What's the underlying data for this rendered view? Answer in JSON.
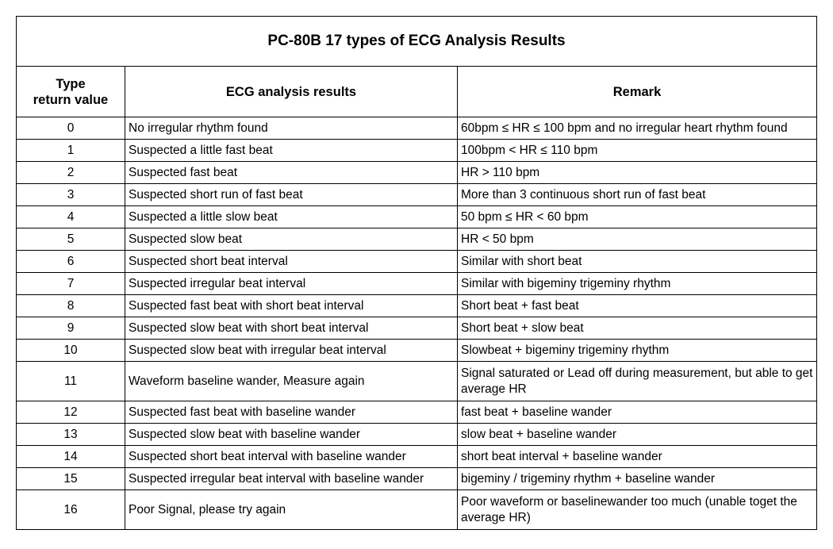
{
  "table": {
    "title": "PC-80B 17 types of ECG Analysis Results",
    "headers": {
      "type_line1": "Type",
      "type_line2": "return value",
      "result": "ECG analysis results",
      "remark": "Remark"
    },
    "rows": [
      {
        "type": "0",
        "result": "No irregular rhythm found",
        "remark": "60bpm ≤ HR ≤ 100 bpm and no irregular heart rhythm found"
      },
      {
        "type": "1",
        "result": "Suspected a little fast beat",
        "remark": "100bpm < HR ≤ 110 bpm"
      },
      {
        "type": "2",
        "result": "Suspected fast beat",
        "remark": "HR > 110 bpm"
      },
      {
        "type": "3",
        "result": "Suspected short run of fast beat",
        "remark": "More than 3 continuous short run of fast beat"
      },
      {
        "type": "4",
        "result": "Suspected a little slow beat",
        "remark": "50 bpm ≤ HR < 60 bpm"
      },
      {
        "type": "5",
        "result": "Suspected slow beat",
        "remark": "HR < 50 bpm"
      },
      {
        "type": "6",
        "result": "Suspected short beat interval",
        "remark": "Similar with short beat"
      },
      {
        "type": "7",
        "result": "Suspected irregular beat interval",
        "remark": "Similar with bigeminy trigeminy rhythm"
      },
      {
        "type": "8",
        "result": "Suspected fast beat with short beat interval",
        "remark": "Short beat + fast beat"
      },
      {
        "type": "9",
        "result": "Suspected slow beat with short beat interval",
        "remark": "Short beat + slow beat"
      },
      {
        "type": "10",
        "result": "Suspected slow beat with irregular beat interval",
        "remark": "Slowbeat + bigeminy trigeminy rhythm"
      },
      {
        "type": "11",
        "result": "Waveform baseline wander, Measure again",
        "remark": "Signal saturated or Lead off during measurement, but able to get average HR"
      },
      {
        "type": "12",
        "result": "Suspected fast beat with baseline wander",
        "remark": "fast beat + baseline wander"
      },
      {
        "type": "13",
        "result": "Suspected slow beat with baseline wander",
        "remark": "slow beat + baseline wander"
      },
      {
        "type": "14",
        "result": "Suspected short beat interval with baseline wander",
        "remark": "short beat interval + baseline wander"
      },
      {
        "type": "15",
        "result": "Suspected irregular beat interval with baseline wander",
        "remark": "bigeminy / trigeminy rhythm + baseline wander"
      },
      {
        "type": "16",
        "result": "Poor Signal, please try again",
        "remark": "Poor waveform or baselinewander too much (unable toget the average HR)"
      }
    ]
  }
}
